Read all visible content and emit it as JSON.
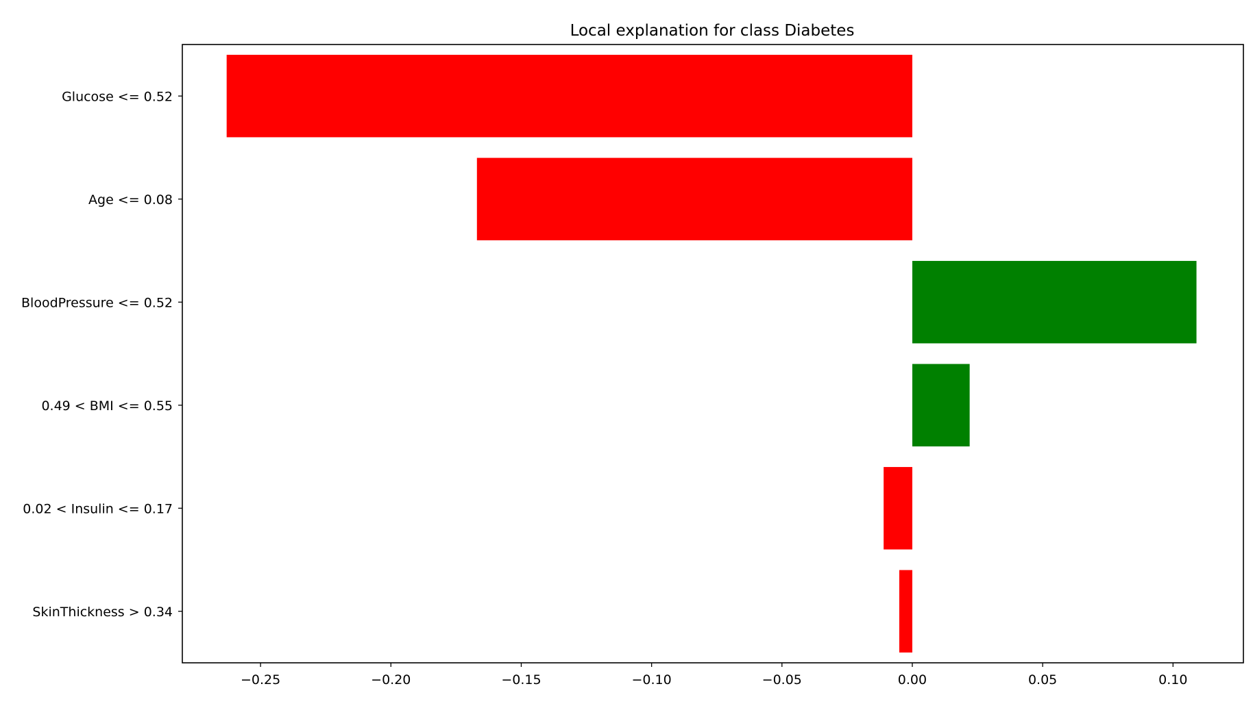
{
  "chart_data": {
    "type": "bar",
    "orientation": "horizontal",
    "title": "Local explanation for class Diabetes",
    "xlabel": "",
    "ylabel": "",
    "categories": [
      "Glucose <= 0.52",
      "Age <= 0.08",
      "BloodPressure <= 0.52",
      "0.49 < BMI <= 0.55",
      "0.02 < Insulin <= 0.17",
      "SkinThickness > 0.34"
    ],
    "values": [
      -0.263,
      -0.167,
      0.109,
      0.022,
      -0.011,
      -0.005
    ],
    "xlim": [
      -0.28,
      0.127
    ],
    "xticks": [
      -0.25,
      -0.2,
      -0.15,
      -0.1,
      -0.05,
      0.0,
      0.05,
      0.1
    ],
    "xtick_labels": [
      "−0.25",
      "−0.20",
      "−0.15",
      "−0.10",
      "−0.05",
      "0.00",
      "0.05",
      "0.10"
    ],
    "grid": false,
    "legend": "none",
    "colors": {
      "positive": "#008000",
      "negative": "#ff0000",
      "axes": "#000000"
    }
  }
}
